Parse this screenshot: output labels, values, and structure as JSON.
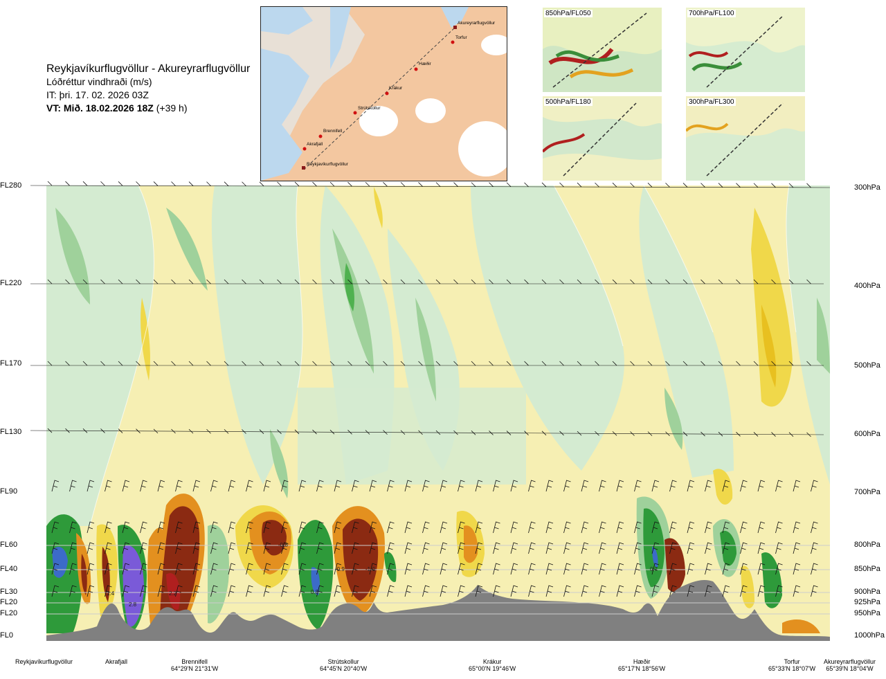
{
  "header": {
    "route": "Reykjavíkurflugvöllur - Akureyrarflugvöllur",
    "parameter": "Lóðréttur vindhraði (m/s)",
    "issue": "IT: þri. 17. 02. 2026 03Z",
    "valid_bold": "VT: Mið. 18.02.2026 18Z",
    "valid_offset": "(+39 h)"
  },
  "map": {
    "places": [
      "Akureyrarflugvöllur",
      "Torfur",
      "Hæðir",
      "Krákur",
      "Strútskollur",
      "Brennifell",
      "Akrafjall",
      "Reykjavíkurflugvöllur"
    ]
  },
  "thumbnails": [
    "850hPa/FL050",
    "700hPa/FL100",
    "500hPa/FL180",
    "300hPa/FL300"
  ],
  "flight_levels": [
    "FL280",
    "FL220",
    "FL170",
    "FL130",
    "FL90",
    "FL60",
    "FL40",
    "FL30",
    "FL20",
    "FL20",
    "FL0"
  ],
  "pressure_levels": [
    "300hPa",
    "400hPa",
    "500hPa",
    "600hPa",
    "700hPa",
    "800hPa",
    "850hPa",
    "900hPa",
    "925hPa",
    "950hPa",
    "1000hPa"
  ],
  "values": [
    "1.4",
    "2.8",
    "2.2",
    "-0.8",
    "0.8",
    "-0.9",
    "-1.0",
    "0.7"
  ],
  "waypoints": [
    {
      "name": "Reykjavíkurflugvöllur",
      "coord": ""
    },
    {
      "name": "Akrafjall",
      "coord": ""
    },
    {
      "name": "Brennifell",
      "coord": "64°29'N 21°31'W"
    },
    {
      "name": "Strútskollur",
      "coord": "64°45'N 20°40'W"
    },
    {
      "name": "Krákur",
      "coord": "65°00'N 19°46'W"
    },
    {
      "name": "Hæðir",
      "coord": "65°17'N 18°56'W"
    },
    {
      "name": "Torfur",
      "coord": "65°33'N 18°07'W"
    },
    {
      "name": "Akureyrarflugvöllur",
      "coord": "65°39'N 18°04'W"
    }
  ],
  "colors": {
    "brown": "#8b2a12",
    "red": "#b01f1f",
    "orange": "#e3901f",
    "yellow": "#f0d84a",
    "paleyellow": "#f7efb0",
    "palegreen": "#d2ead0",
    "green": "#9cd09a",
    "darkgreen": "#2e9a3a",
    "blue": "#3c6bc8",
    "purple": "#7a5ad8",
    "terrain": "#808080"
  }
}
